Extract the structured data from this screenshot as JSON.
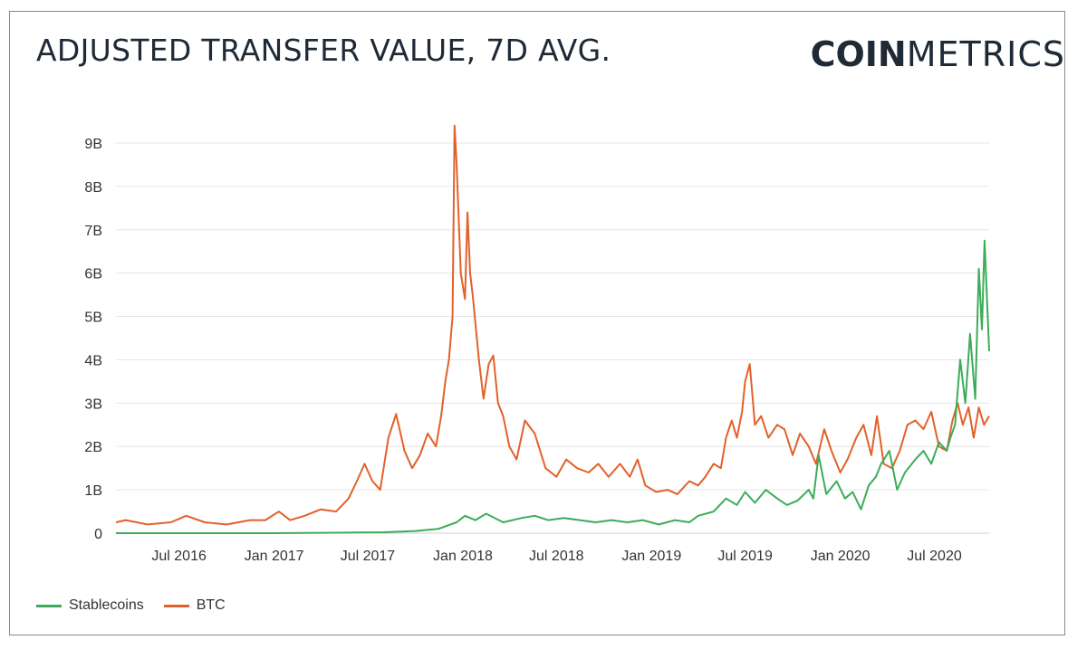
{
  "header": {
    "title": "ADJUSTED TRANSFER VALUE, 7D AVG.",
    "logo_bold": "COIN",
    "logo_light": "METRICS"
  },
  "colors": {
    "stablecoins": "#3cac5a",
    "btc": "#e2612a",
    "grid": "#e6e6e6",
    "text": "#333333"
  },
  "chart_data": {
    "type": "line",
    "title": "ADJUSTED TRANSFER VALUE, 7D AVG.",
    "xlabel": "",
    "ylabel": "",
    "x_ticks": [
      "Jul 2016",
      "Jan 2017",
      "Jul 2017",
      "Jan 2018",
      "Jul 2018",
      "Jan 2019",
      "Jul 2019",
      "Jan 2020",
      "Jul 2020"
    ],
    "y_ticks": [
      "0",
      "1B",
      "2B",
      "3B",
      "4B",
      "5B",
      "6B",
      "7B",
      "8B",
      "9B"
    ],
    "ylim": [
      0,
      9
    ],
    "y_unit": "B",
    "xlim": [
      "2016-03-01",
      "2020-10-15"
    ],
    "grid": true,
    "legend_position": "bottom-left",
    "series": [
      {
        "name": "Stablecoins",
        "color": "#3cac5a",
        "x": [
          "2016-03-01",
          "2016-07-01",
          "2017-01-01",
          "2017-05-01",
          "2017-08-01",
          "2017-10-01",
          "2017-11-15",
          "2017-12-20",
          "2018-01-05",
          "2018-01-25",
          "2018-02-15",
          "2018-03-20",
          "2018-04-25",
          "2018-05-20",
          "2018-06-15",
          "2018-07-15",
          "2018-08-15",
          "2018-09-15",
          "2018-10-15",
          "2018-11-15",
          "2018-12-15",
          "2019-01-15",
          "2019-02-15",
          "2019-03-15",
          "2019-04-01",
          "2019-05-01",
          "2019-05-25",
          "2019-06-15",
          "2019-07-01",
          "2019-07-20",
          "2019-08-10",
          "2019-09-01",
          "2019-09-20",
          "2019-10-10",
          "2019-11-01",
          "2019-11-10",
          "2019-11-20",
          "2019-12-05",
          "2019-12-25",
          "2020-01-10",
          "2020-01-25",
          "2020-02-10",
          "2020-02-25",
          "2020-03-10",
          "2020-03-20",
          "2020-04-05",
          "2020-04-20",
          "2020-05-05",
          "2020-05-25",
          "2020-06-10",
          "2020-06-25",
          "2020-07-10",
          "2020-07-25",
          "2020-08-01",
          "2020-08-10",
          "2020-08-20",
          "2020-08-30",
          "2020-09-08",
          "2020-09-18",
          "2020-09-25",
          "2020-10-01",
          "2020-10-06",
          "2020-10-15"
        ],
        "values": [
          0.0,
          0.0,
          0.0,
          0.01,
          0.02,
          0.05,
          0.1,
          0.25,
          0.4,
          0.3,
          0.45,
          0.25,
          0.35,
          0.4,
          0.3,
          0.35,
          0.3,
          0.25,
          0.3,
          0.25,
          0.3,
          0.2,
          0.3,
          0.25,
          0.4,
          0.5,
          0.8,
          0.65,
          0.95,
          0.7,
          1.0,
          0.8,
          0.65,
          0.75,
          1.0,
          0.8,
          1.8,
          0.9,
          1.2,
          0.8,
          0.95,
          0.55,
          1.1,
          1.3,
          1.6,
          1.9,
          1.0,
          1.4,
          1.7,
          1.9,
          1.6,
          2.1,
          1.9,
          2.2,
          2.5,
          4.0,
          3.0,
          4.6,
          3.1,
          6.1,
          4.7,
          6.75,
          4.2
        ]
      },
      {
        "name": "BTC",
        "color": "#e2612a",
        "x": [
          "2016-03-01",
          "2016-03-20",
          "2016-05-01",
          "2016-06-15",
          "2016-07-15",
          "2016-08-20",
          "2016-10-01",
          "2016-11-15",
          "2016-12-15",
          "2017-01-10",
          "2017-02-01",
          "2017-03-01",
          "2017-04-01",
          "2017-05-01",
          "2017-05-25",
          "2017-06-10",
          "2017-06-25",
          "2017-07-10",
          "2017-07-25",
          "2017-08-10",
          "2017-08-25",
          "2017-09-10",
          "2017-09-25",
          "2017-10-10",
          "2017-10-25",
          "2017-11-10",
          "2017-11-20",
          "2017-11-28",
          "2017-12-05",
          "2017-12-12",
          "2017-12-16",
          "2017-12-20",
          "2017-12-28",
          "2018-01-05",
          "2018-01-10",
          "2018-01-15",
          "2018-01-20",
          "2018-02-01",
          "2018-02-10",
          "2018-02-20",
          "2018-03-01",
          "2018-03-10",
          "2018-03-20",
          "2018-04-01",
          "2018-04-15",
          "2018-05-01",
          "2018-05-20",
          "2018-06-10",
          "2018-07-01",
          "2018-07-20",
          "2018-08-10",
          "2018-09-01",
          "2018-09-20",
          "2018-10-10",
          "2018-11-01",
          "2018-11-20",
          "2018-12-05",
          "2018-12-20",
          "2019-01-10",
          "2019-02-01",
          "2019-02-20",
          "2019-03-15",
          "2019-04-01",
          "2019-04-15",
          "2019-05-01",
          "2019-05-15",
          "2019-05-25",
          "2019-06-05",
          "2019-06-15",
          "2019-06-25",
          "2019-07-01",
          "2019-07-10",
          "2019-07-20",
          "2019-08-01",
          "2019-08-15",
          "2019-09-01",
          "2019-09-15",
          "2019-10-01",
          "2019-10-15",
          "2019-11-01",
          "2019-11-15",
          "2019-12-01",
          "2019-12-15",
          "2020-01-01",
          "2020-01-15",
          "2020-02-01",
          "2020-02-15",
          "2020-03-01",
          "2020-03-12",
          "2020-03-25",
          "2020-04-10",
          "2020-04-25",
          "2020-05-10",
          "2020-05-25",
          "2020-06-10",
          "2020-06-25",
          "2020-07-10",
          "2020-07-25",
          "2020-08-05",
          "2020-08-15",
          "2020-08-25",
          "2020-09-05",
          "2020-09-15",
          "2020-09-25",
          "2020-10-05",
          "2020-10-15"
        ],
        "values": [
          0.25,
          0.3,
          0.2,
          0.25,
          0.4,
          0.25,
          0.2,
          0.3,
          0.3,
          0.5,
          0.3,
          0.4,
          0.55,
          0.5,
          0.8,
          1.2,
          1.6,
          1.2,
          1.0,
          2.2,
          2.75,
          1.9,
          1.5,
          1.8,
          2.3,
          2.0,
          2.7,
          3.5,
          4.0,
          5.0,
          9.4,
          8.5,
          6.0,
          5.4,
          7.4,
          6.0,
          5.5,
          4.0,
          3.1,
          3.9,
          4.1,
          3.0,
          2.7,
          2.0,
          1.7,
          2.6,
          2.3,
          1.5,
          1.3,
          1.7,
          1.5,
          1.4,
          1.6,
          1.3,
          1.6,
          1.3,
          1.7,
          1.1,
          0.95,
          1.0,
          0.9,
          1.2,
          1.1,
          1.3,
          1.6,
          1.5,
          2.2,
          2.6,
          2.2,
          2.8,
          3.5,
          3.9,
          2.5,
          2.7,
          2.2,
          2.5,
          2.4,
          1.8,
          2.3,
          2.0,
          1.6,
          2.4,
          1.9,
          1.4,
          1.7,
          2.2,
          2.5,
          1.8,
          2.7,
          1.6,
          1.5,
          1.9,
          2.5,
          2.6,
          2.4,
          2.8,
          2.0,
          1.9,
          2.6,
          3.0,
          2.5,
          2.9,
          2.2,
          2.9,
          2.5,
          2.7
        ]
      }
    ]
  }
}
